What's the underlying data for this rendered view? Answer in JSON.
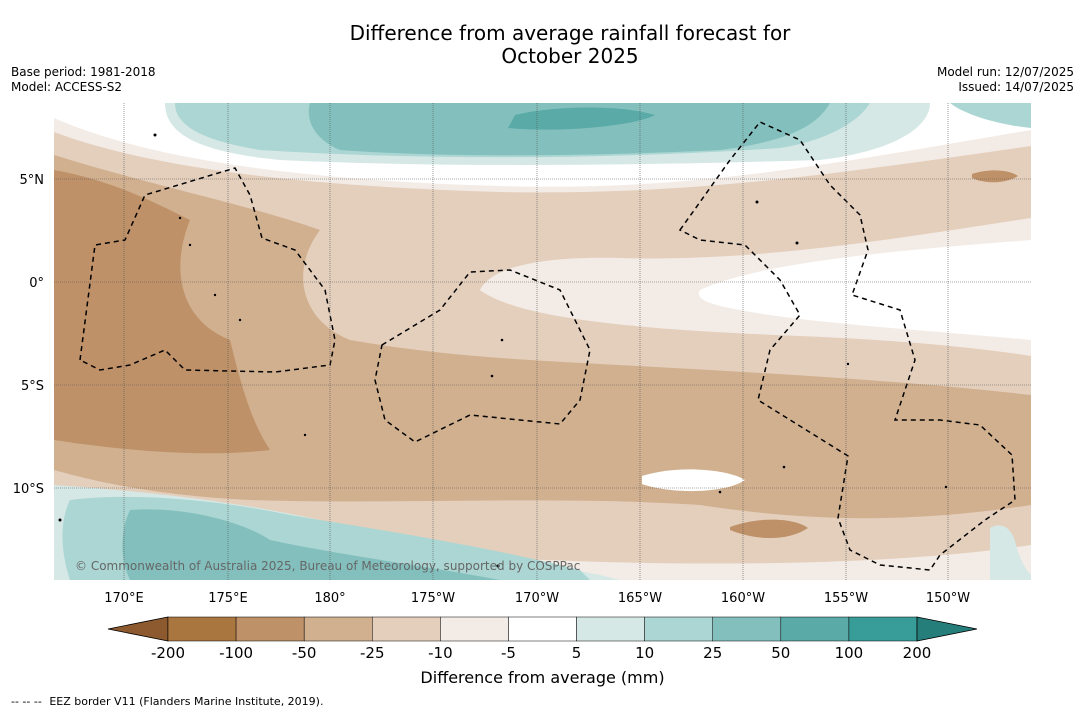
{
  "title": {
    "line1": "Difference from average rainfall forecast for",
    "line2": "October 2025"
  },
  "meta": {
    "base_period": "Base period: 1981-2018",
    "model": "Model: ACCESS-S2",
    "model_run": "Model run: 12/07/2025",
    "issued": "Issued: 14/07/2025"
  },
  "map": {
    "lat_labels": [
      "5°N",
      "0°",
      "5°S",
      "10°S"
    ],
    "lon_labels": [
      "170°E",
      "175°E",
      "180°",
      "175°W",
      "170°W",
      "165°W",
      "160°W",
      "155°W",
      "150°W"
    ],
    "copyright": "© Commonwealth of Australia 2025, Bureau of Meteorology, supported by COSPPac"
  },
  "colorbar": {
    "ticks": [
      "-200",
      "-100",
      "-50",
      "-25",
      "-10",
      "-5",
      "5",
      "10",
      "25",
      "50",
      "100",
      "200"
    ],
    "colors": [
      "#8c5a2e",
      "#aa763f",
      "#be9168",
      "#d1b08f",
      "#e4cfbd",
      "#f3ece6",
      "#ffffff",
      "#d5e8e6",
      "#abd6d3",
      "#83c0bd",
      "#5aaaa8",
      "#389c98",
      "#267e7b"
    ],
    "label": "Difference from average (mm)"
  },
  "footnote": {
    "marker": "--  --  --",
    "text": "EEZ border V11 (Flanders Marine Institute, 2019)."
  }
}
